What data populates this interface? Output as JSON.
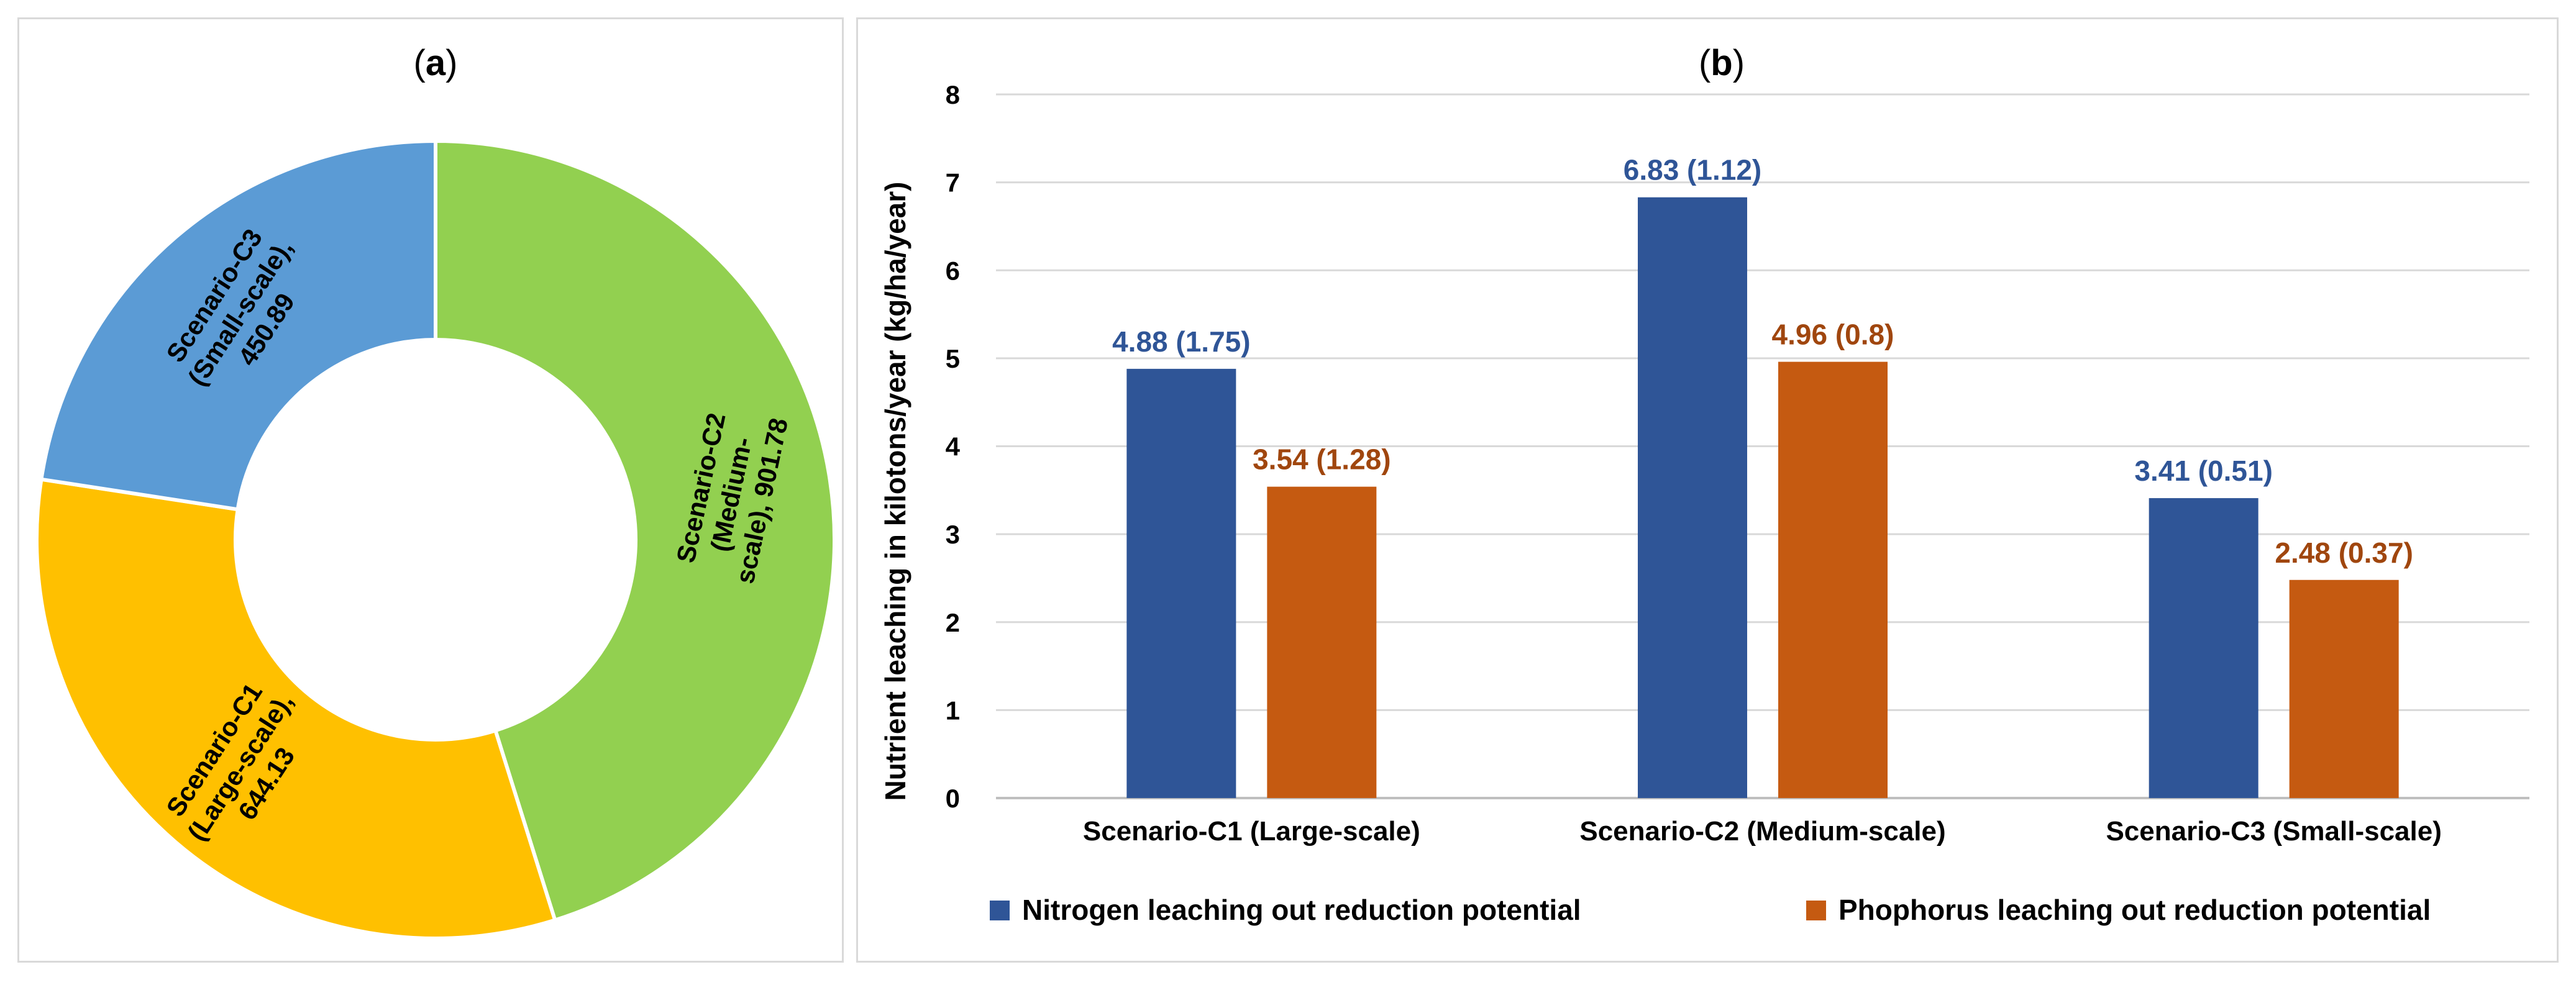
{
  "chart_data": [
    {
      "type": "pie",
      "panel": "(a)",
      "title_open": "(",
      "title_letter": "a",
      "title_close": ")",
      "donut": true,
      "slices": [
        {
          "name": "Scenario-C2 (Medium-scale)",
          "value": 901.78,
          "color": "#92d050",
          "label_lines": [
            "Scenario-C2",
            "(Medium-",
            "scale), 901.78"
          ]
        },
        {
          "name": "Scenario-C1 (Large-scale)",
          "value": 644.13,
          "color": "#ffc000",
          "label_lines": [
            "Scenario-C1",
            "(Large-scale),",
            "644.13"
          ]
        },
        {
          "name": "Scenario-C3 (Small-scale)",
          "value": 450.89,
          "color": "#5b9bd5",
          "label_lines": [
            "Scenario-C3",
            "(Small-scale),",
            "450.89"
          ]
        }
      ]
    },
    {
      "type": "bar",
      "panel": "(b)",
      "title_open": "(",
      "title_letter": "b",
      "title_close": ")",
      "categories": [
        "Scenario-C1 (Large-scale)",
        "Scenario-C2 (Medium-scale)",
        "Scenario-C3 (Small-scale)"
      ],
      "series": [
        {
          "name": "Nitrogen leaching out reduction potential",
          "color": "#2f5597",
          "label_color": "#2f5597",
          "values": [
            4.88,
            6.83,
            3.41
          ],
          "labels": [
            "4.88 (1.75)",
            "6.83 (1.12)",
            "3.41 (0.51)"
          ]
        },
        {
          "name": "Phophorus leaching out reduction potential",
          "color": "#c55a11",
          "label_color": "#a0460e",
          "values": [
            3.54,
            4.96,
            2.48
          ],
          "labels": [
            "3.54 (1.28)",
            "4.96 (0.8)",
            "2.48 (0.37)"
          ]
        }
      ],
      "ylabel": "Nutrient leaching in kilotons/year (kg/ha/year)",
      "ylim": [
        0,
        8
      ],
      "yticks": [
        "0",
        "1",
        "2",
        "3",
        "4",
        "5",
        "6",
        "7",
        "8"
      ],
      "grid": true,
      "legend": "bottom"
    }
  ]
}
